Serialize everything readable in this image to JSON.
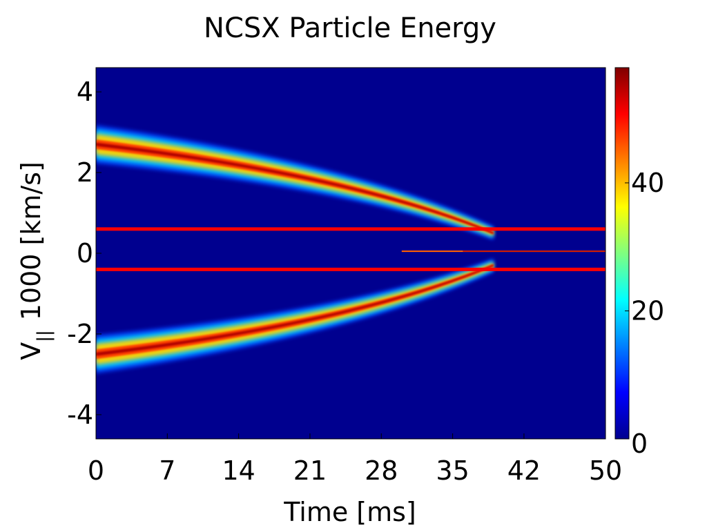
{
  "chart_data": {
    "type": "heatmap",
    "title": "NCSX Particle Energy",
    "xlabel": "Time [ms]",
    "ylabel_main": "V",
    "ylabel_subscript": "||",
    "ylabel_rest": "1000 [km/s]",
    "x_range": [
      0,
      50
    ],
    "y_range": [
      -4.6,
      4.6
    ],
    "x_ticks": [
      0,
      7,
      14,
      21,
      28,
      35,
      42,
      50
    ],
    "x_tick_labels": [
      "0",
      "7",
      "14",
      "21",
      "28",
      "35",
      "42",
      "50"
    ],
    "y_ticks": [
      -4,
      -2,
      0,
      2,
      4
    ],
    "y_tick_labels": [
      "-4",
      "-2",
      "0",
      "2",
      "4"
    ],
    "colorbar": {
      "range": [
        0,
        58
      ],
      "ticks": [
        0,
        20,
        40
      ],
      "tick_labels": [
        "0",
        "20",
        "40"
      ],
      "colormap": "jet"
    },
    "background_color": "#00008F",
    "features": [
      {
        "name": "upper band",
        "t_start": 0,
        "v_start": 2.7,
        "t_end": 39,
        "v_end": 0.5,
        "peak_value": 55
      },
      {
        "name": "lower band",
        "t_start": 0,
        "v_start": -2.5,
        "t_end": 39,
        "v_end": -0.3,
        "peak_value": 55
      },
      {
        "name": "trapped core",
        "t_start": 26,
        "t_end": 50,
        "v": 0.05,
        "peak_value": 52
      }
    ],
    "reference_lines": [
      {
        "v": 0.6,
        "color": "#FF0000"
      },
      {
        "v": -0.4,
        "color": "#FF0000"
      }
    ]
  }
}
